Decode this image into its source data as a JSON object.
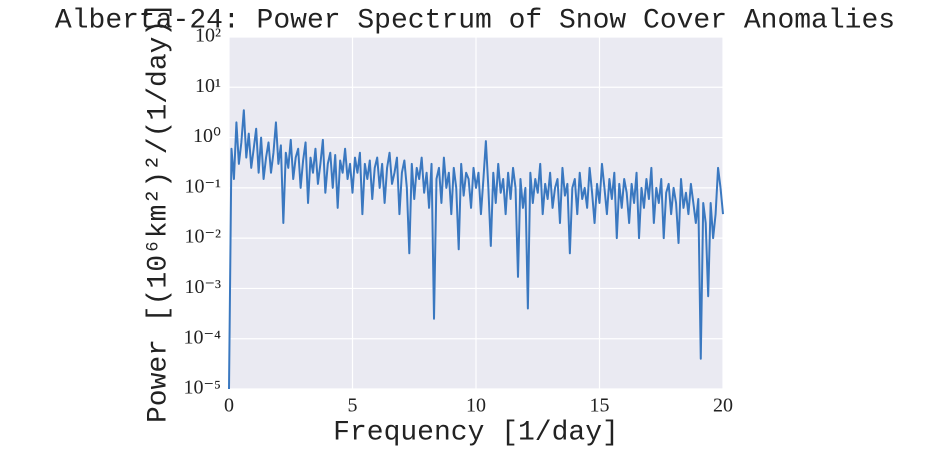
{
  "chart_data": {
    "type": "line",
    "title": "Alberta-24:  Power Spectrum of Snow Cover Anomalies",
    "x_label": "Frequency [1/day]",
    "y_label": "Power [(10⁶km²)²/(1/day)]",
    "xlim": [
      0,
      20
    ],
    "xticks": [
      0,
      5,
      10,
      15,
      20
    ],
    "ylim": [
      1e-05,
      100
    ],
    "y_scale": "log",
    "yticks": [
      {
        "value": 1e-05,
        "label": "10⁻⁵"
      },
      {
        "value": 0.0001,
        "label": "10⁻⁴"
      },
      {
        "value": 0.001,
        "label": "10⁻³"
      },
      {
        "value": 0.01,
        "label": "10⁻²"
      },
      {
        "value": 0.1,
        "label": "10⁻¹"
      },
      {
        "value": 1,
        "label": "10⁰"
      },
      {
        "value": 10,
        "label": "10¹"
      },
      {
        "value": 100,
        "label": "10²"
      }
    ],
    "grid": true,
    "x": [
      0,
      0.1,
      0.2,
      0.3,
      0.4,
      0.5,
      0.6,
      0.7,
      0.8,
      0.9,
      1,
      1.1,
      1.2,
      1.3,
      1.4,
      1.5,
      1.6,
      1.7,
      1.8,
      1.9,
      2,
      2.1,
      2.2,
      2.3,
      2.4,
      2.5,
      2.6,
      2.7,
      2.8,
      2.9,
      3,
      3.1,
      3.2,
      3.3,
      3.4,
      3.5,
      3.6,
      3.7,
      3.8,
      3.9,
      4,
      4.1,
      4.2,
      4.3,
      4.4,
      4.5,
      4.6,
      4.7,
      4.8,
      4.9,
      5,
      5.1,
      5.2,
      5.3,
      5.4,
      5.5,
      5.6,
      5.7,
      5.8,
      5.9,
      6,
      6.1,
      6.2,
      6.3,
      6.4,
      6.5,
      6.6,
      6.7,
      6.8,
      6.9,
      7,
      7.1,
      7.2,
      7.3,
      7.4,
      7.5,
      7.6,
      7.7,
      7.8,
      7.9,
      8,
      8.1,
      8.2,
      8.3,
      8.4,
      8.5,
      8.6,
      8.7,
      8.8,
      8.9,
      9,
      9.1,
      9.2,
      9.3,
      9.4,
      9.5,
      9.6,
      9.7,
      9.8,
      9.9,
      10,
      10.1,
      10.2,
      10.3,
      10.4,
      10.5,
      10.6,
      10.7,
      10.8,
      10.9,
      11,
      11.1,
      11.2,
      11.3,
      11.4,
      11.5,
      11.6,
      11.7,
      11.8,
      11.9,
      12,
      12.1,
      12.2,
      12.3,
      12.4,
      12.5,
      12.6,
      12.7,
      12.8,
      12.9,
      13,
      13.1,
      13.2,
      13.3,
      13.4,
      13.5,
      13.6,
      13.7,
      13.8,
      13.9,
      14,
      14.1,
      14.2,
      14.3,
      14.4,
      14.5,
      14.6,
      14.7,
      14.8,
      14.9,
      15,
      15.1,
      15.2,
      15.3,
      15.4,
      15.5,
      15.6,
      15.7,
      15.8,
      15.9,
      16,
      16.1,
      16.2,
      16.3,
      16.4,
      16.5,
      16.6,
      16.7,
      16.8,
      16.9,
      17,
      17.1,
      17.2,
      17.3,
      17.4,
      17.5,
      17.6,
      17.7,
      17.8,
      17.9,
      18,
      18.1,
      18.2,
      18.3,
      18.4,
      18.5,
      18.6,
      18.7,
      18.8,
      18.9,
      19,
      19.1,
      19.2,
      19.3,
      19.4,
      19.5,
      19.6,
      19.7,
      19.8,
      19.9,
      20
    ],
    "series": [
      {
        "color": "#3a78c0",
        "values": [
          1e-05,
          0.6,
          0.15,
          2.0,
          0.3,
          0.8,
          3.5,
          0.4,
          1.2,
          0.25,
          0.6,
          1.5,
          0.2,
          1.0,
          0.15,
          0.4,
          0.8,
          0.2,
          0.5,
          2.0,
          0.3,
          0.7,
          0.02,
          0.5,
          0.25,
          0.9,
          0.15,
          0.4,
          0.6,
          0.1,
          0.35,
          0.8,
          0.05,
          0.4,
          0.2,
          0.6,
          0.12,
          0.3,
          0.9,
          0.08,
          0.3,
          0.5,
          0.1,
          0.45,
          0.04,
          0.35,
          0.2,
          0.6,
          0.15,
          0.3,
          0.08,
          0.4,
          0.2,
          0.5,
          0.03,
          0.3,
          0.15,
          0.35,
          0.06,
          0.25,
          0.4,
          0.1,
          0.3,
          0.05,
          0.25,
          0.5,
          0.12,
          0.2,
          0.4,
          0.03,
          0.2,
          0.35,
          0.1,
          0.005,
          0.3,
          0.06,
          0.25,
          0.15,
          0.4,
          0.08,
          0.2,
          0.04,
          0.3,
          0.00025,
          0.15,
          0.25,
          0.05,
          0.4,
          0.1,
          0.2,
          0.03,
          0.25,
          0.1,
          0.006,
          0.3,
          0.07,
          0.2,
          0.15,
          0.04,
          0.25,
          0.1,
          0.2,
          0.03,
          0.15,
          0.85,
          0.1,
          0.007,
          0.2,
          0.05,
          0.3,
          0.08,
          0.15,
          0.03,
          0.2,
          0.06,
          0.25,
          0.1,
          0.0017,
          0.15,
          0.04,
          0.1,
          0.0004,
          0.2,
          0.05,
          0.15,
          0.08,
          0.3,
          0.03,
          0.12,
          0.06,
          0.2,
          0.04,
          0.1,
          0.15,
          0.02,
          0.25,
          0.07,
          0.12,
          0.005,
          0.1,
          0.15,
          0.03,
          0.2,
          0.06,
          0.1,
          0.04,
          0.25,
          0.08,
          0.02,
          0.12,
          0.05,
          0.3,
          0.1,
          0.03,
          0.15,
          0.06,
          0.2,
          0.01,
          0.12,
          0.04,
          0.15,
          0.08,
          0.02,
          0.12,
          0.05,
          0.2,
          0.01,
          0.1,
          0.04,
          0.15,
          0.06,
          0.25,
          0.02,
          0.1,
          0.05,
          0.15,
          0.01,
          0.08,
          0.12,
          0.03,
          0.1,
          0.05,
          0.008,
          0.15,
          0.04,
          0.08,
          0.03,
          0.12,
          0.05,
          0.02,
          0.06,
          4e-05,
          0.05,
          0.02,
          0.0007,
          0.05,
          0.01,
          0.03,
          0.25,
          0.1,
          0.03
        ]
      }
    ]
  }
}
